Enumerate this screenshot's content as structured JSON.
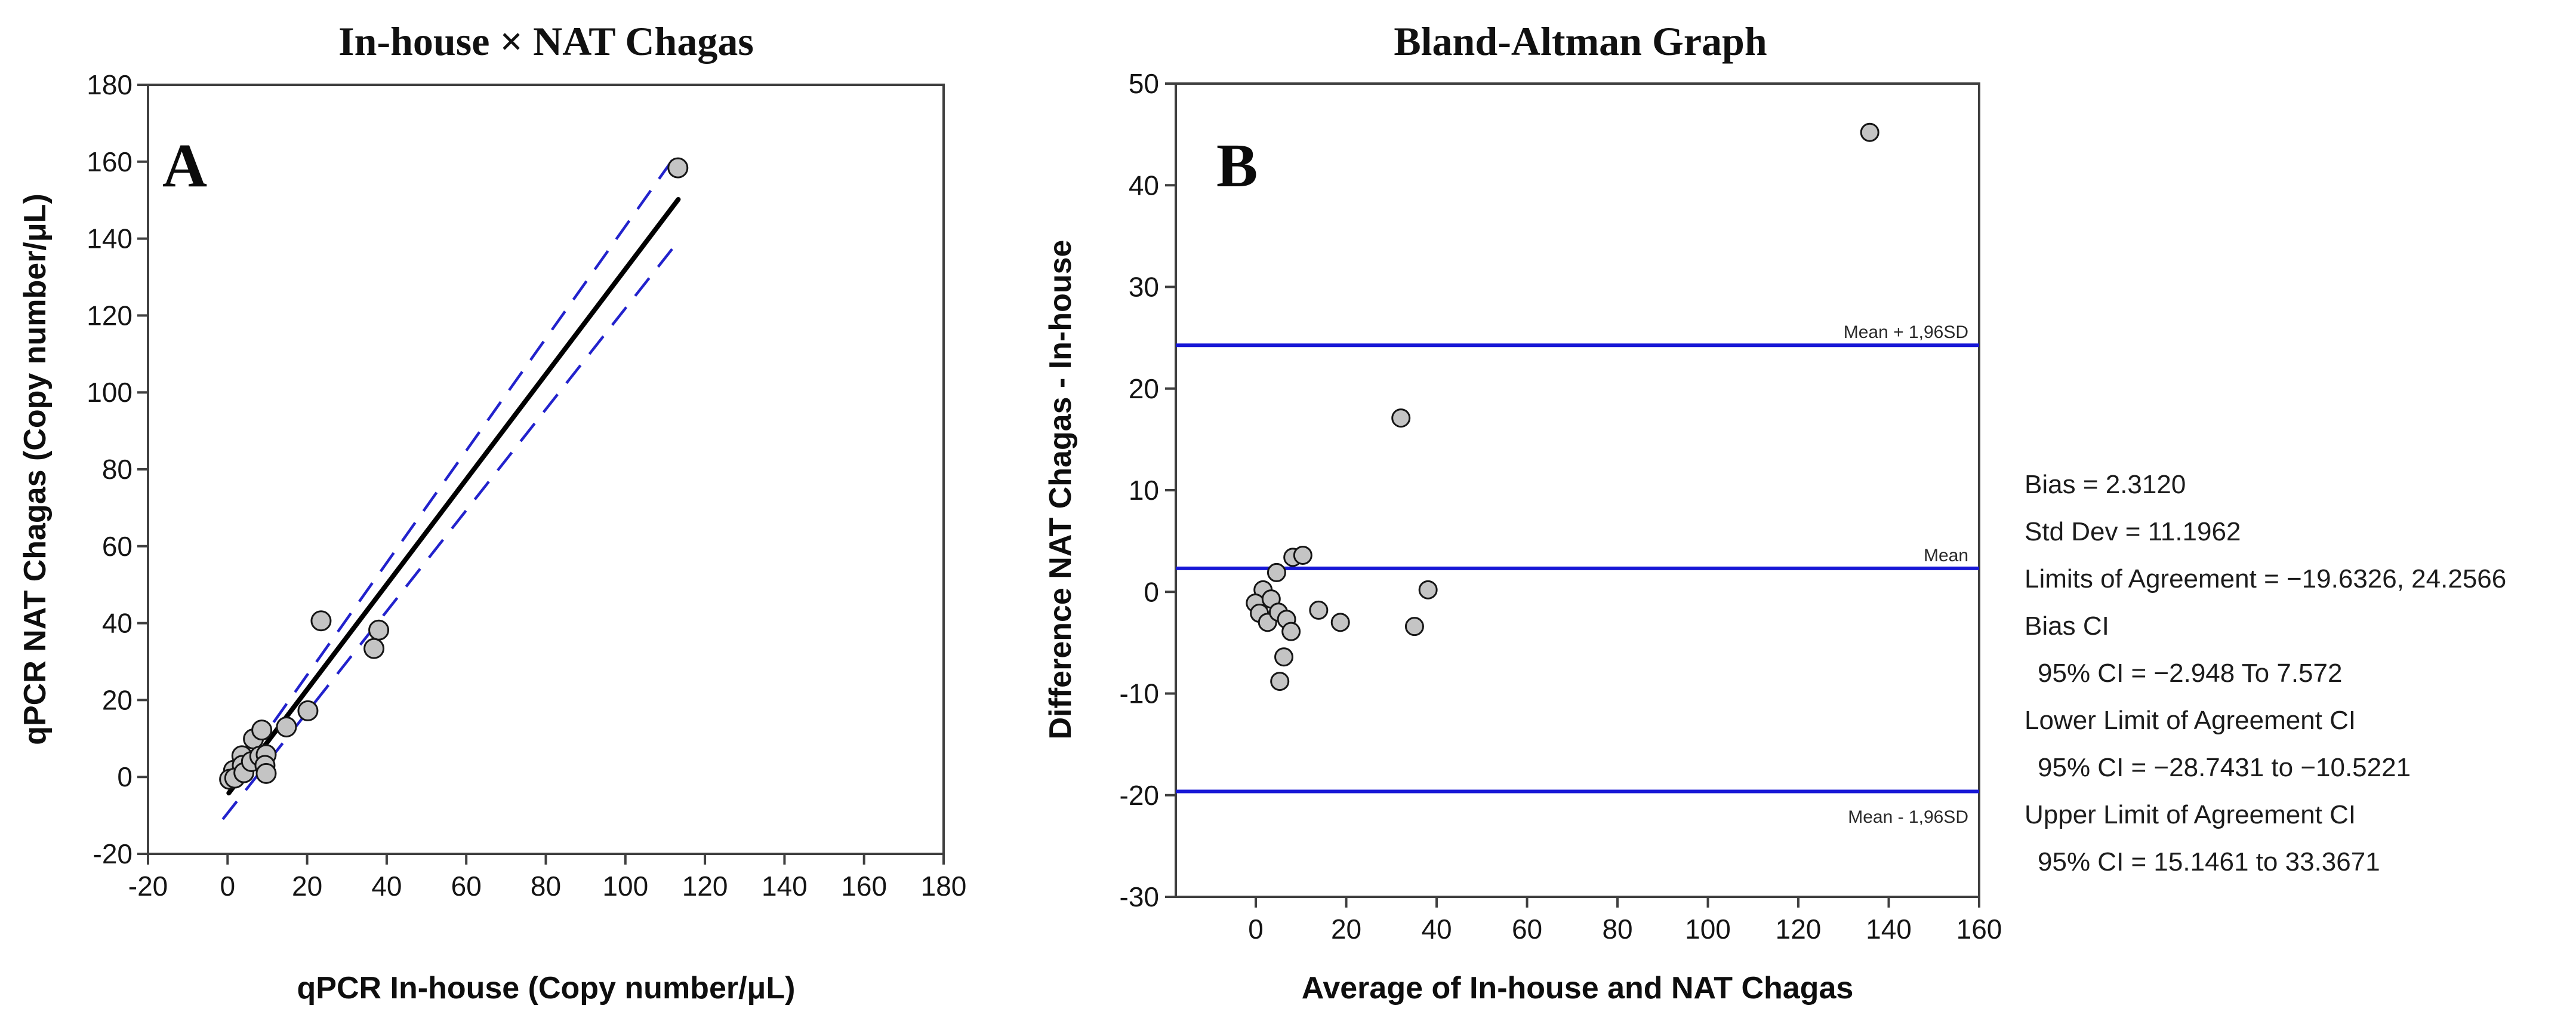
{
  "figure": {
    "background": "#ffffff"
  },
  "colors": {
    "spine": "#3f3f3f",
    "tick_text": "#141414",
    "point_fill": "#c4c4c4",
    "point_stroke": "#151515",
    "regression_black": "#000000",
    "ci_blue": "#2222cc",
    "ba_line_blue": "#1717d6"
  },
  "chart_data": [
    {
      "type": "scatter",
      "panel": "A",
      "title": "In-house × NAT Chagas",
      "xlabel": "qPCR In-house (Copy number/μL)",
      "ylabel": "qPCR NAT Chagas (Copy number/μL)",
      "xlim": [
        -20,
        180
      ],
      "ylim": [
        -20,
        180
      ],
      "x_ticks": [
        -20,
        0,
        20,
        40,
        60,
        80,
        100,
        120,
        140,
        160,
        180
      ],
      "y_ticks": [
        -20,
        0,
        20,
        40,
        60,
        80,
        100,
        120,
        140,
        160,
        180
      ],
      "grid": false,
      "points": [
        [
          113.2,
          158.4
        ],
        [
          23.5,
          40.6
        ],
        [
          38.0,
          38.2
        ],
        [
          36.8,
          33.4
        ],
        [
          20.2,
          17.2
        ],
        [
          14.8,
          13.0
        ],
        [
          6.5,
          9.9
        ],
        [
          8.6,
          12.2
        ],
        [
          3.6,
          5.5
        ],
        [
          1.5,
          1.7
        ],
        [
          0.5,
          -0.6
        ],
        [
          3.7,
          3.0
        ],
        [
          1.8,
          -0.3
        ],
        [
          4.1,
          1.1
        ],
        [
          6.0,
          4.0
        ],
        [
          8.1,
          5.4
        ],
        [
          9.7,
          5.8
        ],
        [
          9.4,
          3.0
        ],
        [
          9.7,
          0.9
        ]
      ],
      "regression_line": {
        "x1": 0.3,
        "y1": -4.2,
        "x2": 113.3,
        "y2": 150.2,
        "style": "solid"
      },
      "ci_lines": [
        {
          "name": "upper-ci",
          "x1": 0.8,
          "y1": -1.5,
          "x2": 113.3,
          "y2": 162.6,
          "style": "dashed"
        },
        {
          "name": "lower-ci",
          "x1": -1.2,
          "y1": -11.0,
          "x2": 112.6,
          "y2": 138.4,
          "style": "dashed"
        }
      ]
    },
    {
      "type": "scatter",
      "panel": "B",
      "title": "Bland-Altman Graph",
      "xlabel": "Average of In-house and NAT Chagas",
      "ylabel": "Difference NAT Chagas - In-house",
      "xlim": [
        -17.7,
        160
      ],
      "ylim": [
        -30,
        50
      ],
      "x_ticks": [
        0,
        20,
        40,
        60,
        80,
        100,
        120,
        140,
        160
      ],
      "y_ticks": [
        -30,
        -20,
        -10,
        0,
        10,
        20,
        30,
        40,
        50
      ],
      "grid": false,
      "points": [
        [
          135.8,
          45.2
        ],
        [
          32.1,
          17.1
        ],
        [
          38.1,
          0.2
        ],
        [
          35.1,
          -3.4
        ],
        [
          18.7,
          -3.0
        ],
        [
          13.9,
          -1.8
        ],
        [
          8.2,
          3.4
        ],
        [
          10.4,
          3.6
        ],
        [
          4.6,
          1.9
        ],
        [
          1.6,
          0.2
        ],
        [
          -0.1,
          -1.1
        ],
        [
          3.4,
          -0.7
        ],
        [
          0.8,
          -2.1
        ],
        [
          2.6,
          -3.0
        ],
        [
          5.0,
          -2.0
        ],
        [
          6.8,
          -2.7
        ],
        [
          7.8,
          -3.9
        ],
        [
          6.2,
          -6.4
        ],
        [
          5.3,
          -8.8
        ]
      ],
      "hlines": [
        {
          "y": 24.2566,
          "label": "Mean + 1,96SD",
          "label_side": "above"
        },
        {
          "y": 2.312,
          "label": "Mean",
          "label_side": "above"
        },
        {
          "y": -19.6326,
          "label": "Mean - 1,96SD",
          "label_side": "below"
        }
      ]
    }
  ],
  "panel_letters": {
    "a": "A",
    "b": "B"
  },
  "stats_panel": {
    "lines": [
      "Bias = 2.3120",
      "Std Dev = 11.1962",
      "Limits of Agreement = −19.6326, 24.2566",
      "Bias CI",
      "95% CI = −2.948 To 7.572",
      "Lower Limit of Agreement CI",
      "95% CI = −28.7431 to −10.5221",
      "Upper Limit of Agreement CI",
      "95% CI = 15.1461 to 33.3671"
    ],
    "indented_lines": [
      4,
      6,
      8
    ]
  }
}
